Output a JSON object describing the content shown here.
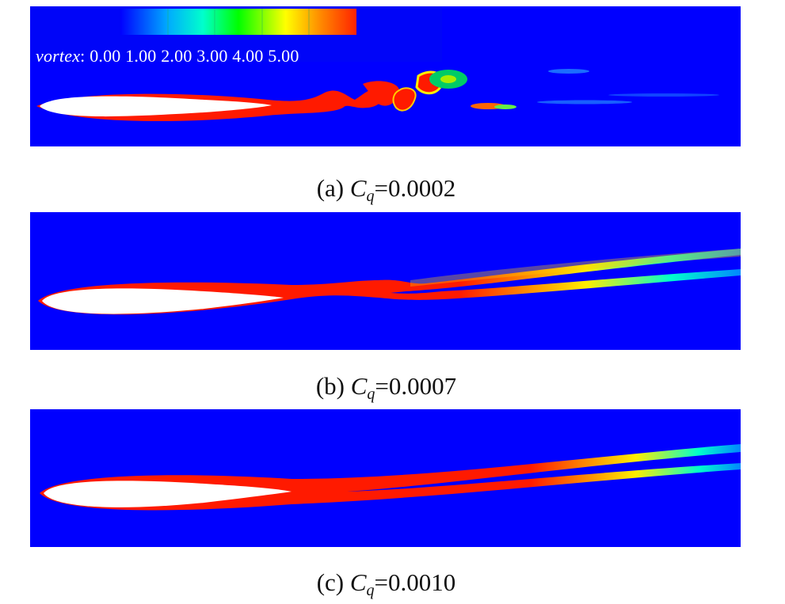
{
  "legend": {
    "variable": "vortex",
    "separator": ":",
    "ticks": [
      "0.00",
      "1.00",
      "2.00",
      "3.00",
      "4.00",
      "5.00"
    ],
    "colors": [
      "#0000ff",
      "#00aaff",
      "#00ffcc",
      "#00ff00",
      "#ffff00",
      "#ff8800",
      "#ff0000"
    ]
  },
  "panels": [
    {
      "label": "(a)",
      "symbol": "C",
      "subscript": "q",
      "value": "=0.0002"
    },
    {
      "label": "(b)",
      "symbol": "C",
      "subscript": "q",
      "value": "=0.0007"
    },
    {
      "label": "(c)",
      "symbol": "C",
      "subscript": "q",
      "value": "=0.0010"
    }
  ],
  "colors": {
    "background_field": "#0000ff",
    "wake": "#ff0000",
    "airfoil": "#ffffff"
  }
}
